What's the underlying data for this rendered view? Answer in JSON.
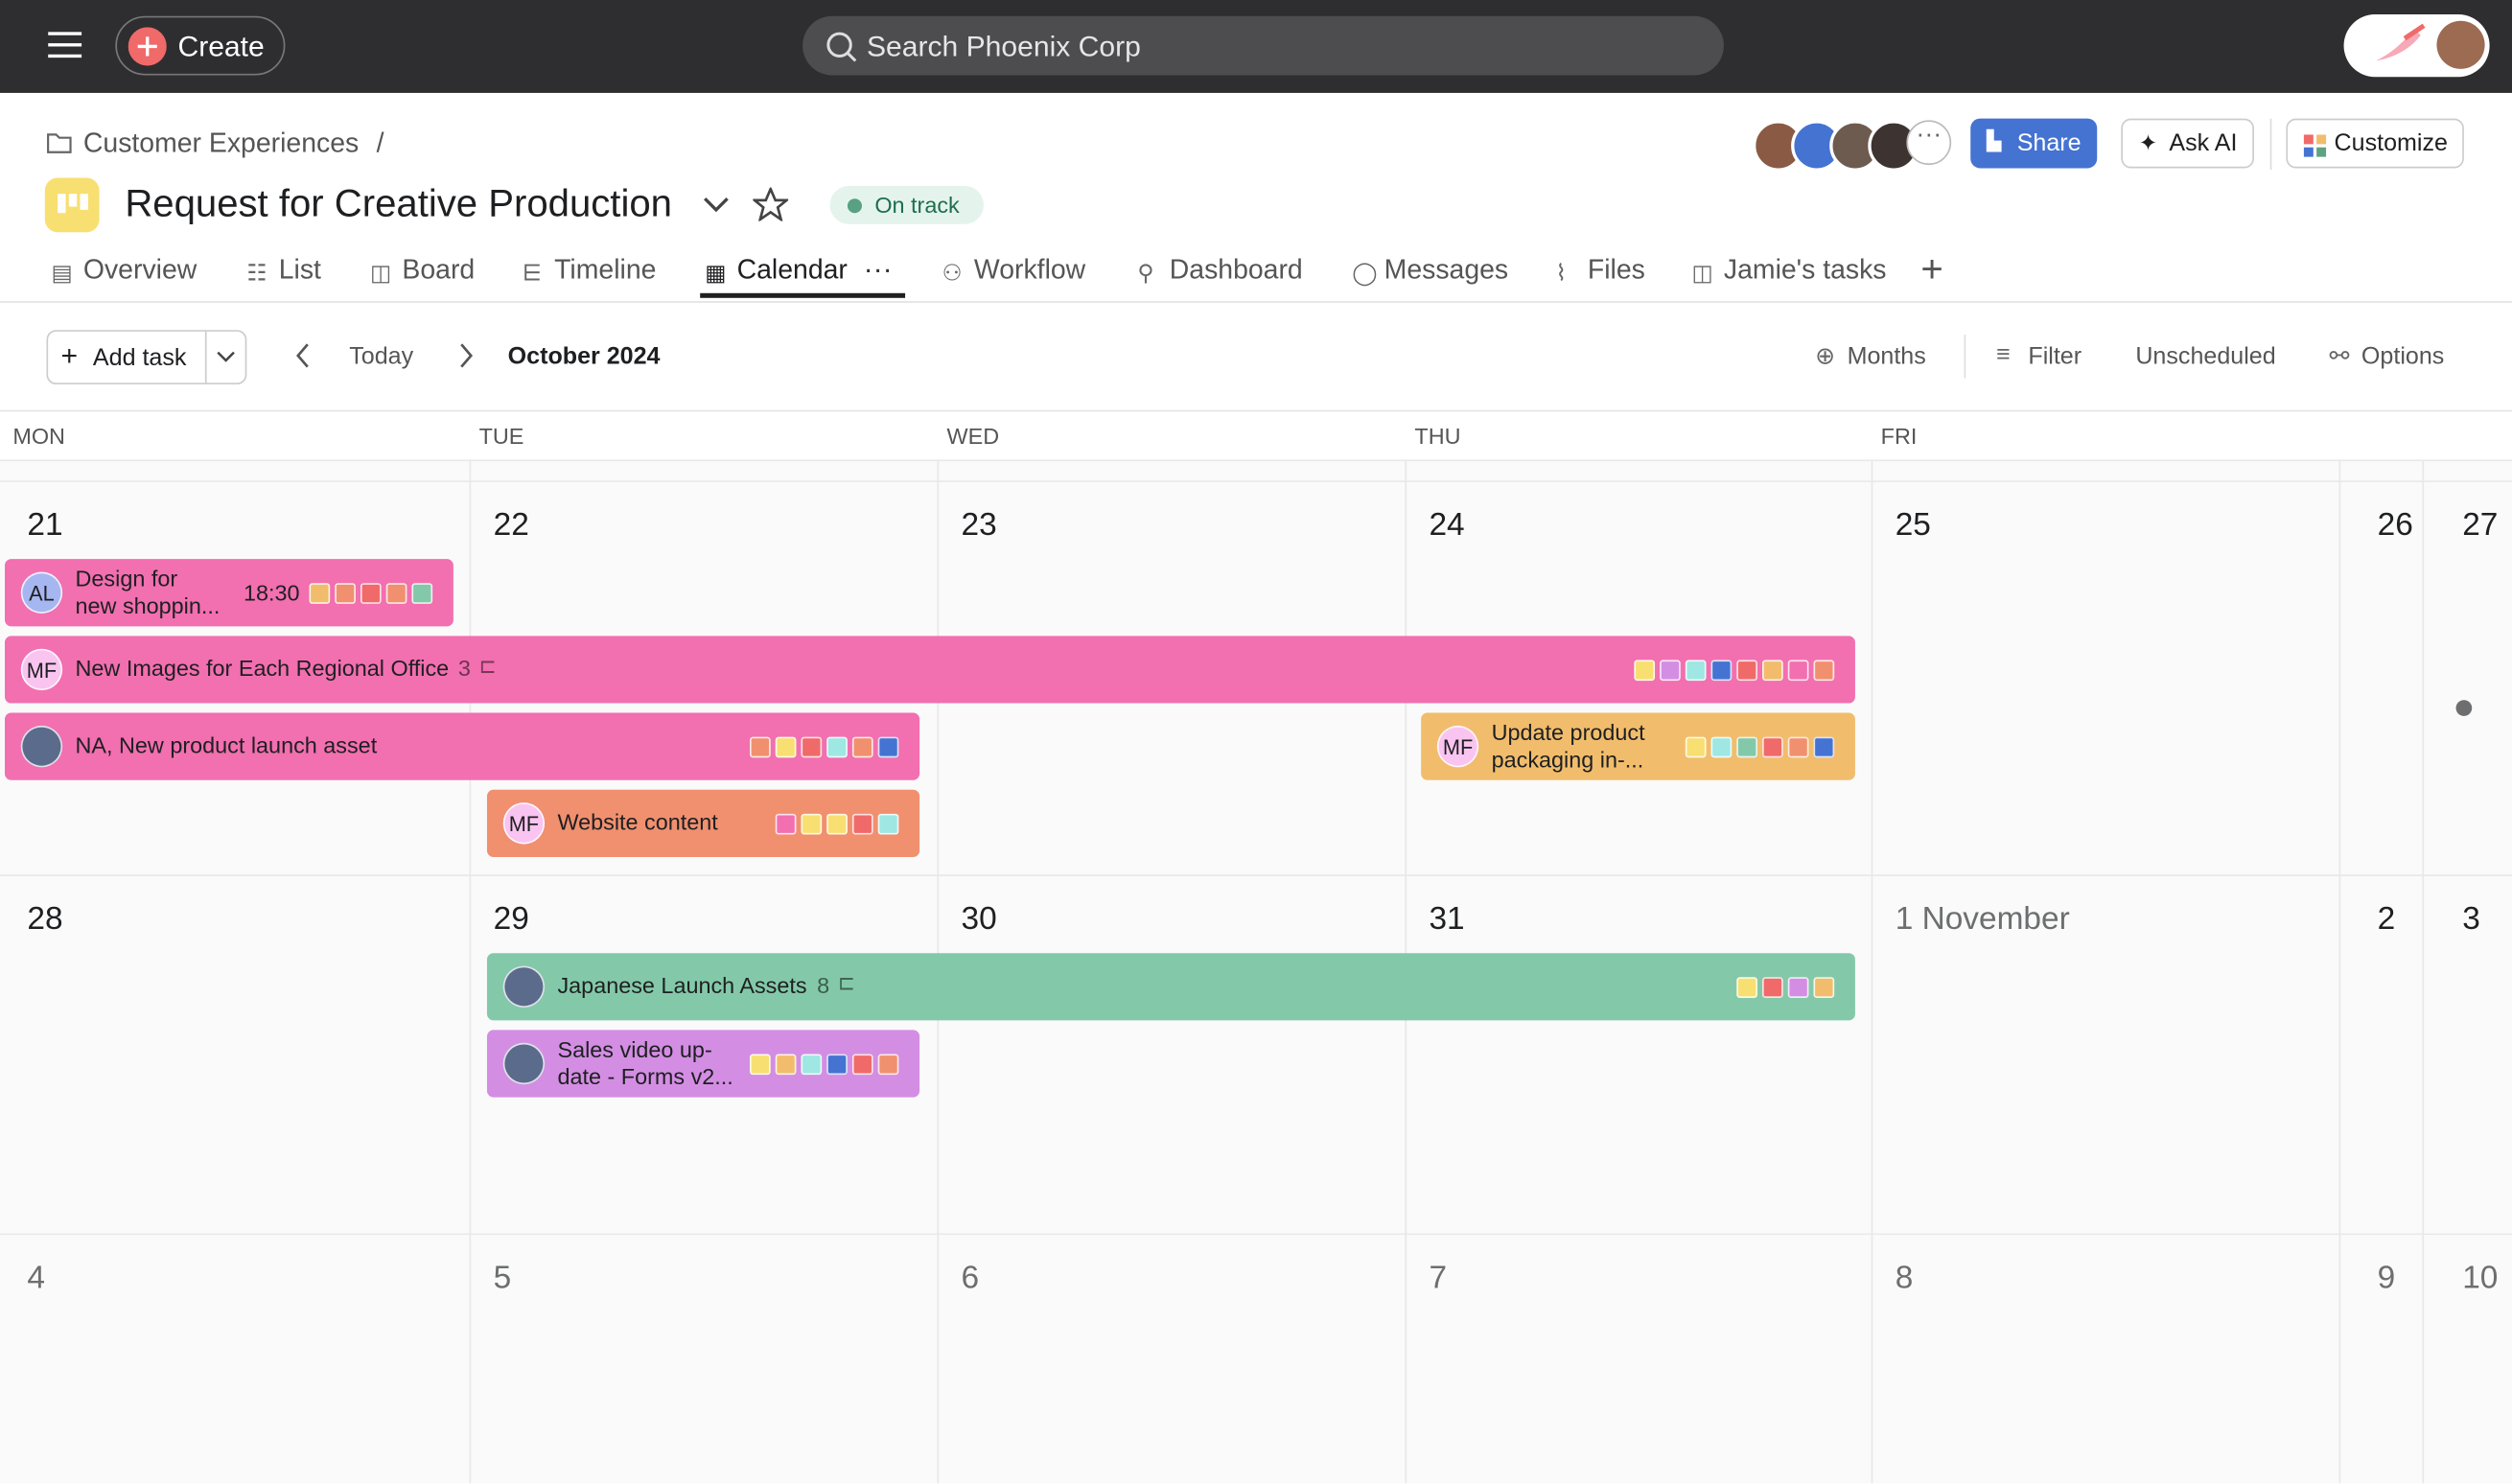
{
  "topbar": {
    "create": "Create",
    "search": "Search Phoenix Corp"
  },
  "header": {
    "breadcrumb": "Customer Experiences",
    "separator": "/",
    "title": "Request for Creative Production",
    "status": "On track",
    "buttons": [
      "Share",
      "Ask AI",
      "Customize"
    ]
  },
  "tabs": [
    "Overview",
    "List",
    "Board",
    "Timeline",
    "Calendar",
    "Workflow",
    "Dashboard",
    "Messages",
    "Files",
    "Jamie's tasks"
  ],
  "toolbar": {
    "add_task": "Add task",
    "today": "Today",
    "month": "October 2024",
    "actions": [
      "Months",
      "Filter",
      "Unscheduled",
      "Options"
    ]
  },
  "calendar": {
    "weekdays": [
      "MON",
      "TUE",
      "WED",
      "THU",
      "FRI"
    ],
    "weeks": [
      {
        "days": [
          "21",
          "22",
          "23",
          "24",
          "25",
          "26",
          "27"
        ],
        "tasks": [
          {
            "assignee": "AL",
            "lines": [
              "Design for",
              "new shoppin..."
            ],
            "time": "18:30"
          },
          {
            "assignee": "MF",
            "lines": [
              "New Images for Each Regional Office"
            ],
            "subtasks": "3"
          },
          {
            "lines": [
              "NA, New product launch asset"
            ]
          },
          {
            "assignee": "MF",
            "lines": [
              "Update product",
              "packaging in-..."
            ]
          },
          {
            "assignee": "MF",
            "lines": [
              "Website content"
            ]
          }
        ]
      },
      {
        "days": [
          "28",
          "29",
          "30",
          "31",
          "1 November",
          "2",
          "3"
        ],
        "tasks": [
          {
            "lines": [
              "Japanese Launch Assets"
            ],
            "subtasks": "8"
          },
          {
            "lines": [
              "Sales video up-",
              "date - Forms v2..."
            ]
          }
        ]
      },
      {
        "days": [
          "4",
          "5",
          "6",
          "7",
          "8",
          "9",
          "10"
        ],
        "tasks": []
      }
    ]
  }
}
